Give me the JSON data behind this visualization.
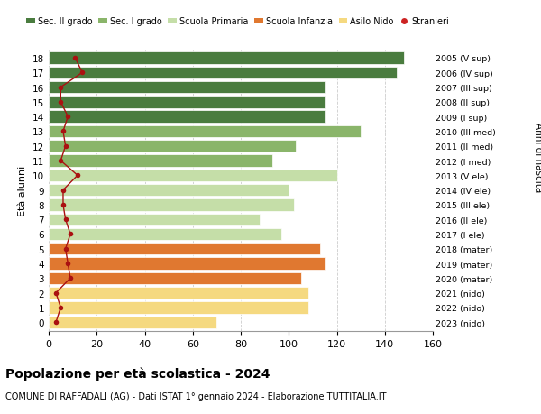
{
  "ages": [
    18,
    17,
    16,
    15,
    14,
    13,
    12,
    11,
    10,
    9,
    8,
    7,
    6,
    5,
    4,
    3,
    2,
    1,
    0
  ],
  "bar_values": [
    148,
    145,
    115,
    115,
    115,
    130,
    103,
    93,
    120,
    100,
    102,
    88,
    97,
    113,
    115,
    105,
    108,
    108,
    70
  ],
  "bar_colors": [
    "#4a7c3f",
    "#4a7c3f",
    "#4a7c3f",
    "#4a7c3f",
    "#4a7c3f",
    "#8ab56a",
    "#8ab56a",
    "#8ab56a",
    "#c5dea8",
    "#c5dea8",
    "#c5dea8",
    "#c5dea8",
    "#c5dea8",
    "#e07830",
    "#e07830",
    "#e07830",
    "#f5d980",
    "#f5d980",
    "#f5d980"
  ],
  "stranieri_values": [
    11,
    14,
    5,
    5,
    8,
    6,
    7,
    5,
    12,
    6,
    6,
    7,
    9,
    7,
    8,
    9,
    3,
    5,
    3
  ],
  "right_labels": [
    "2005 (V sup)",
    "2006 (IV sup)",
    "2007 (III sup)",
    "2008 (II sup)",
    "2009 (I sup)",
    "2010 (III med)",
    "2011 (II med)",
    "2012 (I med)",
    "2013 (V ele)",
    "2014 (IV ele)",
    "2015 (III ele)",
    "2016 (II ele)",
    "2017 (I ele)",
    "2018 (mater)",
    "2019 (mater)",
    "2020 (mater)",
    "2021 (nido)",
    "2022 (nido)",
    "2023 (nido)"
  ],
  "legend_labels": [
    "Sec. II grado",
    "Sec. I grado",
    "Scuola Primaria",
    "Scuola Infanzia",
    "Asilo Nido",
    "Stranieri"
  ],
  "legend_colors": [
    "#4a7c3f",
    "#8ab56a",
    "#c5dea8",
    "#e07830",
    "#f5d980",
    "#cc2222"
  ],
  "ylabel": "Età alunni",
  "right_ylabel": "Anni di nascita",
  "title": "Popolazione per età scolastica - 2024",
  "subtitle": "COMUNE DI RAFFADALI (AG) - Dati ISTAT 1° gennaio 2024 - Elaborazione TUTTITALIA.IT",
  "xlim": [
    0,
    160
  ],
  "xticks": [
    0,
    20,
    40,
    60,
    80,
    100,
    120,
    140,
    160
  ],
  "stranieri_color": "#aa1111",
  "background_color": "#ffffff",
  "grid_color": "#cccccc",
  "bar_height": 0.82
}
